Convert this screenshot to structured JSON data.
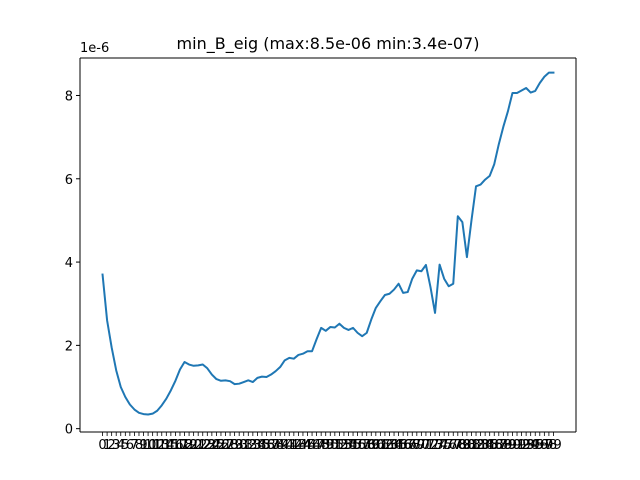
{
  "chart_data": {
    "type": "line",
    "title": "min_B_eig (max:8.5e-06 min:3.4e-07)",
    "xlabel": "",
    "ylabel": "",
    "y_offset_text": "1e-6",
    "ylim": [
      -8e-08,
      8.9e-06
    ],
    "y_ticks": [
      0,
      2e-06,
      4e-06,
      6e-06,
      8e-06
    ],
    "y_tick_labels": [
      "0",
      "2",
      "4",
      "6",
      "8"
    ],
    "x_ticks": [
      0,
      1,
      2,
      3,
      4,
      5,
      6,
      7,
      8,
      9,
      10,
      11,
      12,
      13,
      14,
      15,
      16,
      17,
      18,
      19,
      20,
      21,
      22,
      23,
      24,
      25,
      26,
      27,
      28,
      29,
      30,
      31,
      32,
      33,
      34,
      35,
      36,
      37,
      38,
      39,
      40,
      41,
      42,
      43,
      44,
      45,
      46,
      47,
      48,
      49,
      50,
      51,
      52,
      53,
      54,
      55,
      56,
      57,
      58,
      59,
      60,
      61,
      62,
      63,
      64,
      65,
      66,
      67,
      68,
      69,
      70,
      71,
      72,
      73,
      74,
      75,
      76,
      77,
      78,
      79,
      80,
      81,
      82,
      83,
      84,
      85,
      86,
      87,
      88,
      89,
      90,
      91,
      92,
      93,
      94,
      95,
      96,
      97,
      98,
      99
    ],
    "x_tick_labels": [
      "0",
      "1",
      "2",
      "3",
      "4",
      "5",
      "6",
      "7",
      "8",
      "9",
      "10",
      "11",
      "12",
      "13",
      "14",
      "15",
      "16",
      "17",
      "18",
      "19",
      "20",
      "21",
      "22",
      "23",
      "24",
      "25",
      "26",
      "27",
      "28",
      "29",
      "30",
      "31",
      "32",
      "33",
      "34",
      "35",
      "36",
      "37",
      "38",
      "39",
      "40",
      "41",
      "42",
      "43",
      "44",
      "45",
      "46",
      "47",
      "48",
      "49",
      "50",
      "51",
      "52",
      "53",
      "54",
      "55",
      "56",
      "57",
      "58",
      "59",
      "60",
      "61",
      "62",
      "63",
      "64",
      "65",
      "66",
      "67",
      "68",
      "69",
      "70",
      "71",
      "72",
      "73",
      "74",
      "75",
      "76",
      "77",
      "78",
      "79",
      "80",
      "81",
      "82",
      "83",
      "84",
      "85",
      "86",
      "87",
      "88",
      "89",
      "90",
      "91",
      "92",
      "93",
      "94",
      "95",
      "96",
      "97",
      "98",
      "99"
    ],
    "line_color": "#1f77b4",
    "grid": false,
    "x": [
      0,
      1,
      2,
      3,
      4,
      5,
      6,
      7,
      8,
      9,
      10,
      11,
      12,
      13,
      14,
      15,
      16,
      17,
      18,
      19,
      20,
      21,
      22,
      23,
      24,
      25,
      26,
      27,
      28,
      29,
      30,
      31,
      32,
      33,
      34,
      35,
      36,
      37,
      38,
      39,
      40,
      41,
      42,
      43,
      44,
      45,
      46,
      47,
      48,
      49,
      50,
      51,
      52,
      53,
      54,
      55,
      56,
      57,
      58,
      59,
      60,
      61,
      62,
      63,
      64,
      65,
      66,
      67,
      68,
      69,
      70,
      71,
      72,
      73,
      74,
      75,
      76,
      77,
      78,
      79,
      80,
      81,
      82,
      83,
      84,
      85,
      86,
      87,
      88,
      89,
      90,
      91,
      92,
      93,
      94,
      95,
      96,
      97,
      98,
      99
    ],
    "y": [
      3.7e-06,
      2.6e-06,
      1.95e-06,
      1.4e-06,
      1e-06,
      7.6e-07,
      5.8e-07,
      4.6e-07,
      3.8e-07,
      3.5e-07,
      3.4e-07,
      3.6e-07,
      4.3e-07,
      5.6e-07,
      7.2e-07,
      9.2e-07,
      1.15e-06,
      1.42e-06,
      1.6e-06,
      1.54e-06,
      1.51e-06,
      1.52e-06,
      1.54e-06,
      1.45e-06,
      1.3e-06,
      1.19e-06,
      1.15e-06,
      1.16e-06,
      1.14e-06,
      1.07e-06,
      1.08e-06,
      1.12e-06,
      1.16e-06,
      1.12e-06,
      1.22e-06,
      1.25e-06,
      1.24e-06,
      1.3e-06,
      1.38e-06,
      1.48e-06,
      1.64e-06,
      1.7e-06,
      1.68e-06,
      1.77e-06,
      1.8e-06,
      1.86e-06,
      1.86e-06,
      2.15e-06,
      2.42e-06,
      2.35e-06,
      2.44e-06,
      2.43e-06,
      2.52e-06,
      2.42e-06,
      2.37e-06,
      2.42e-06,
      2.3e-06,
      2.22e-06,
      2.3e-06,
      2.62e-06,
      2.9e-06,
      3.06e-06,
      3.21e-06,
      3.24e-06,
      3.34e-06,
      3.48e-06,
      3.26e-06,
      3.28e-06,
      3.6e-06,
      3.8e-06,
      3.78e-06,
      3.93e-06,
      3.4e-06,
      2.78e-06,
      3.94e-06,
      3.6e-06,
      3.42e-06,
      3.48e-06,
      5.1e-06,
      4.96e-06,
      4.12e-06,
      5e-06,
      5.82e-06,
      5.86e-06,
      5.98e-06,
      6.07e-06,
      6.35e-06,
      6.83e-06,
      7.25e-06,
      7.62e-06,
      8.06e-06,
      8.06e-06,
      8.12e-06,
      8.18e-06,
      8.07e-06,
      8.11e-06,
      8.3e-06,
      8.45e-06,
      8.55e-06,
      8.55e-06
    ]
  }
}
